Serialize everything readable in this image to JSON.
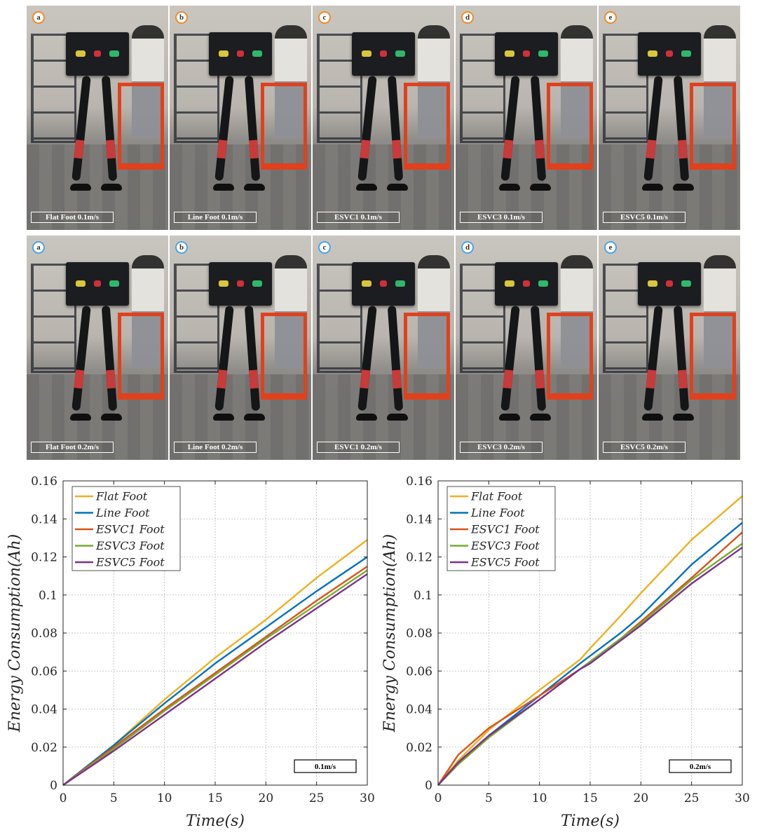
{
  "photos": {
    "rows": [
      {
        "badge_style": "orange",
        "items": [
          {
            "letter": "a",
            "caption": "Flat Foot 0.1m/s"
          },
          {
            "letter": "b",
            "caption": "Line Foot 0.1m/s"
          },
          {
            "letter": "c",
            "caption": "ESVC1 0.1m/s"
          },
          {
            "letter": "d",
            "caption": "ESVC3 0.1m/s"
          },
          {
            "letter": "e",
            "caption": "ESVC5 0.1m/s"
          }
        ]
      },
      {
        "badge_style": "blue",
        "items": [
          {
            "letter": "a",
            "caption": "Flat Foot 0.2m/s"
          },
          {
            "letter": "b",
            "caption": "Line Foot 0.2m/s"
          },
          {
            "letter": "c",
            "caption": "ESVC1 0.2m/s"
          },
          {
            "letter": "d",
            "caption": "ESVC3 0.2m/s"
          },
          {
            "letter": "e",
            "caption": "ESVC5 0.2m/s"
          }
        ]
      }
    ]
  },
  "chart_data": [
    {
      "type": "line",
      "title": "",
      "annotation": "0.1m/s",
      "xlabel": "Time(s)",
      "ylabel": "Energy Consumption(Ah)",
      "xlim": [
        0,
        30
      ],
      "ylim": [
        0,
        0.16
      ],
      "xticks": [
        0,
        5,
        10,
        15,
        20,
        25,
        30
      ],
      "yticks": [
        0,
        0.02,
        0.04,
        0.06,
        0.08,
        0.1,
        0.12,
        0.14,
        0.16
      ],
      "ytick_labels": [
        "0",
        "0.02",
        "0.04",
        "0.06",
        "0.08",
        "0.1",
        "0.12",
        "0.14",
        "0.16"
      ],
      "grid": true,
      "legend_position": "top-left",
      "x": [
        0,
        5,
        10,
        15,
        20,
        25,
        30
      ],
      "series": [
        {
          "name": "Flat Foot",
          "color": "#EDB120",
          "values": [
            0,
            0.021,
            0.045,
            0.067,
            0.087,
            0.109,
            0.129
          ]
        },
        {
          "name": "Line Foot",
          "color": "#0072BD",
          "values": [
            0,
            0.021,
            0.043,
            0.064,
            0.083,
            0.102,
            0.12
          ]
        },
        {
          "name": "ESVC1 Foot",
          "color": "#D95319",
          "values": [
            0,
            0.02,
            0.04,
            0.059,
            0.078,
            0.097,
            0.115
          ]
        },
        {
          "name": "ESVC3 Foot",
          "color": "#77AC30",
          "values": [
            0,
            0.019,
            0.039,
            0.058,
            0.077,
            0.095,
            0.113
          ]
        },
        {
          "name": "ESVC5 Foot",
          "color": "#7E2F8E",
          "values": [
            0,
            0.018,
            0.037,
            0.056,
            0.075,
            0.093,
            0.111
          ]
        }
      ]
    },
    {
      "type": "line",
      "title": "",
      "annotation": "0.2m/s",
      "xlabel": "Time(s)",
      "ylabel": "Energy Consumption(Ah)",
      "xlim": [
        0,
        30
      ],
      "ylim": [
        0,
        0.16
      ],
      "xticks": [
        0,
        5,
        10,
        15,
        20,
        25,
        30
      ],
      "yticks": [
        0,
        0.02,
        0.04,
        0.06,
        0.08,
        0.1,
        0.12,
        0.14,
        0.16
      ],
      "ytick_labels": [
        "0",
        "0.02",
        "0.04",
        "0.06",
        "0.08",
        "0.1",
        "0.12",
        "0.14",
        "0.16"
      ],
      "grid": true,
      "legend_position": "top-left",
      "x": [
        0,
        2,
        5,
        10,
        14,
        15,
        18,
        20,
        25,
        30
      ],
      "series": [
        {
          "name": "Flat Foot",
          "color": "#EDB120",
          "values": [
            0,
            0.013,
            0.029,
            0.05,
            0.066,
            0.072,
            0.089,
            0.101,
            0.129,
            0.152
          ]
        },
        {
          "name": "Line Foot",
          "color": "#0072BD",
          "values": [
            0,
            0.012,
            0.026,
            0.047,
            0.064,
            0.068,
            0.08,
            0.089,
            0.116,
            0.138
          ]
        },
        {
          "name": "ESVC1 Foot",
          "color": "#D95319",
          "values": [
            0,
            0.016,
            0.03,
            0.047,
            0.061,
            0.065,
            0.077,
            0.086,
            0.109,
            0.133
          ]
        },
        {
          "name": "ESVC3 Foot",
          "color": "#77AC30",
          "values": [
            0,
            0.011,
            0.025,
            0.045,
            0.061,
            0.065,
            0.077,
            0.085,
            0.108,
            0.127
          ]
        },
        {
          "name": "ESVC5 Foot",
          "color": "#7E2F8E",
          "values": [
            0,
            0.012,
            0.026,
            0.045,
            0.061,
            0.064,
            0.076,
            0.084,
            0.106,
            0.125
          ]
        }
      ]
    }
  ]
}
